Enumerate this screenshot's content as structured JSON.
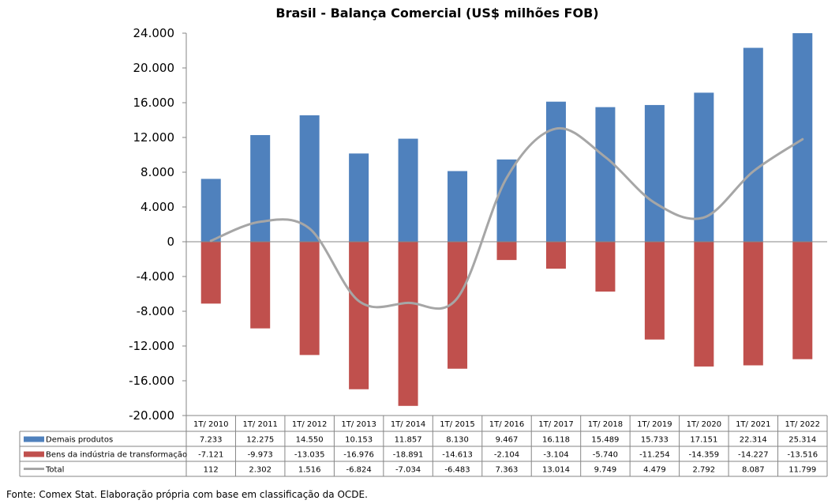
{
  "chart_data": {
    "type": "bar",
    "title": "Brasil - Balança Comercial (US$ milhões FOB)",
    "categories": [
      "1T/ 2010",
      "1T/ 2011",
      "1T/ 2012",
      "1T/ 2013",
      "1T/ 2014",
      "1T/ 2015",
      "1T/ 2016",
      "1T/ 2017",
      "1T/ 2018",
      "1T/ 2019",
      "1T/ 2020",
      "1T/ 2021",
      "1T/ 2022"
    ],
    "ylim": [
      -20000,
      24000
    ],
    "y_ticks": [
      24000,
      20000,
      16000,
      12000,
      8000,
      4000,
      0,
      -4000,
      -8000,
      -12000,
      -16000,
      -20000
    ],
    "y_tick_labels": [
      "24.000",
      "20.000",
      "16.000",
      "12.000",
      "8.000",
      "4.000",
      "0",
      "-4.000",
      "-8.000",
      "-12.000",
      "-16.000",
      "-20.000"
    ],
    "series": [
      {
        "name": "Demais produtos",
        "kind": "bar",
        "color": "#4f81bd",
        "values": [
          7233,
          12275,
          14550,
          10153,
          11857,
          8130,
          9467,
          16118,
          15489,
          15733,
          17151,
          22314,
          25314
        ],
        "labels": [
          "7.233",
          "12.275",
          "14.550",
          "10.153",
          "11.857",
          "8.130",
          "9.467",
          "16.118",
          "15.489",
          "15.733",
          "17.151",
          "22.314",
          "25.314"
        ]
      },
      {
        "name": "Bens da indústria de transformação",
        "kind": "bar",
        "color": "#c0504d",
        "values": [
          -7121,
          -9973,
          -13035,
          -16976,
          -18891,
          -14613,
          -2104,
          -3104,
          -5740,
          -11254,
          -14359,
          -14227,
          -13516
        ],
        "labels": [
          "-7.121",
          "-9.973",
          "-13.035",
          "-16.976",
          "-18.891",
          "-14.613",
          "-2.104",
          "-3.104",
          "-5.740",
          "-11.254",
          "-14.359",
          "-14.227",
          "-13.516"
        ]
      },
      {
        "name": "Total",
        "kind": "line",
        "color": "#a6a6a6",
        "values": [
          112,
          2302,
          1516,
          -6824,
          -7034,
          -6483,
          7363,
          13014,
          9749,
          4479,
          2792,
          8087,
          11799
        ],
        "labels": [
          "112",
          "2.302",
          "1.516",
          "-6.824",
          "-7.034",
          "-6.483",
          "7.363",
          "13.014",
          "9.749",
          "4.479",
          "2.792",
          "8.087",
          "11.799"
        ]
      }
    ],
    "grid": false,
    "legend": "data-table"
  },
  "source_note": "Fonte: Comex Stat. Elaboração própria com base em classificação da OCDE."
}
